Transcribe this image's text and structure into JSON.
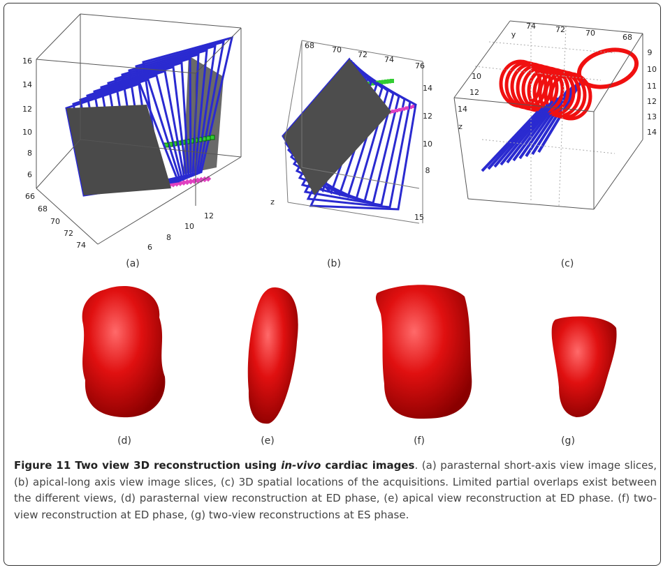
{
  "panels": [
    {
      "label": "(a)",
      "ticks": [
        "16",
        "14",
        "12",
        "10",
        "8",
        "6",
        "66",
        "68",
        "70",
        "72",
        "74",
        "6",
        "8",
        "10",
        "12"
      ]
    },
    {
      "label": "(b)",
      "ticks": [
        "68",
        "70",
        "72",
        "74",
        "76",
        "14",
        "12",
        "10",
        "8",
        "15",
        "z"
      ]
    },
    {
      "label": "(c)",
      "ticks": [
        "74",
        "72",
        "70",
        "68",
        "9",
        "10",
        "11",
        "12",
        "13",
        "14",
        "10",
        "12",
        "14",
        "y",
        "z"
      ]
    },
    {
      "label": "(d)"
    },
    {
      "label": "(e)"
    },
    {
      "label": "(f)"
    },
    {
      "label": "(g)"
    }
  ],
  "caption": {
    "title_lead": "Figure 11 Two view 3D reconstruction using ",
    "title_em": "in-vivo",
    "title_tail": " cardiac images",
    "body": ". (a) parasternal short-axis view image slices, (b) apical-long axis view image slices, (c) 3D spatial locations of the acquisitions. Limited partial overlaps exist between the different views, (d) parasternal view reconstruction at ED phase, (e) apical view reconstruction at ED phase. (f) two-view reconstruction at ED phase, (g) two-view reconstructions at ES phase."
  }
}
